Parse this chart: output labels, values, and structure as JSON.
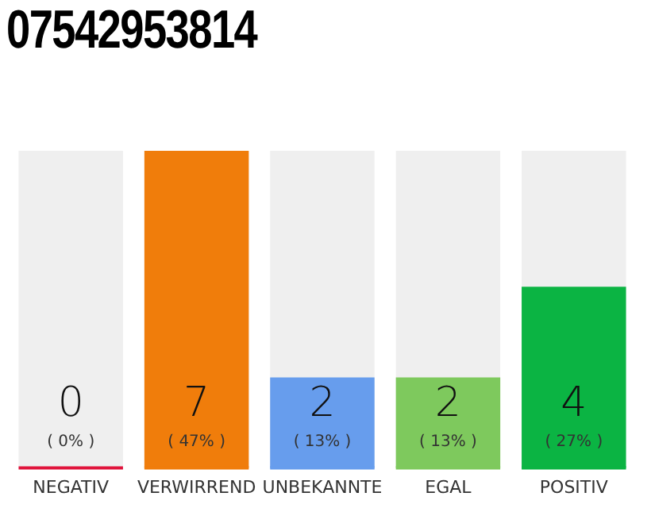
{
  "chart_data": {
    "type": "bar",
    "title": "07542953814",
    "categories": [
      "NEGATIV",
      "VERWIRREND",
      "UNBEKANNTE",
      "EGAL",
      "POSITIV"
    ],
    "values": [
      0,
      7,
      2,
      2,
      4
    ],
    "colors": [
      "#e0143c",
      "#f07d0b",
      "#679ded",
      "#7ec95d",
      "#0bb443"
    ],
    "value_labels": [
      "0\n( 0% )",
      "7\n( 47% )",
      "2\n( 13% )",
      "2\n( 13% )",
      "4\n( 27% )"
    ],
    "grid": false,
    "legend": false,
    "tick_labels": "x"
  }
}
